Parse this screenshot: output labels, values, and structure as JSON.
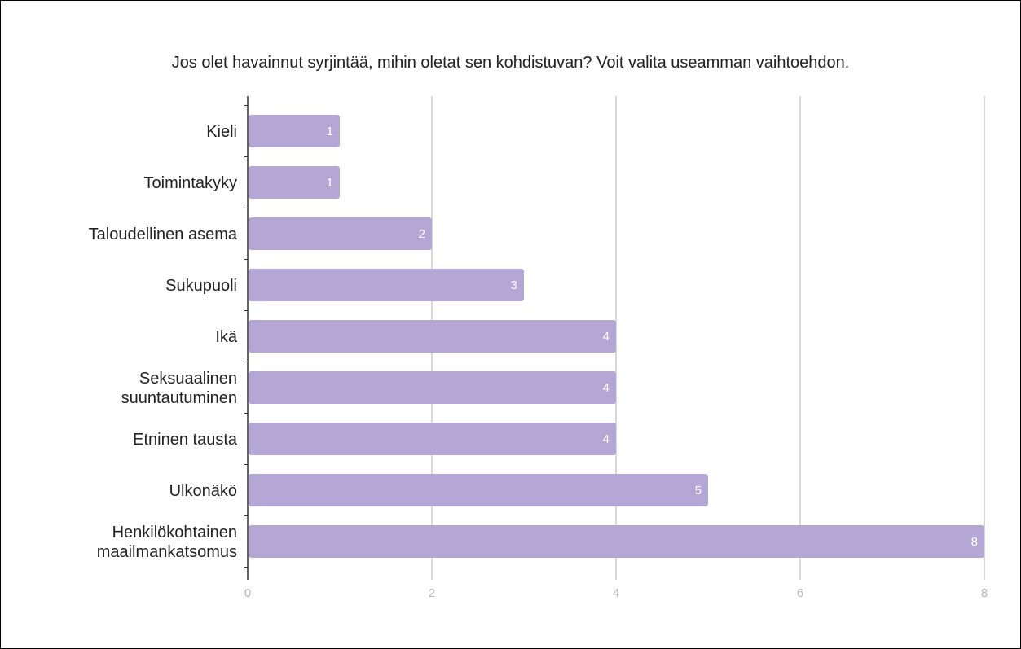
{
  "chart_data": {
    "type": "bar",
    "orientation": "horizontal",
    "title": "Jos olet havainnut syrjintää, mihin oletat sen kohdistuvan? Voit valita useamman vaihtoehdon.",
    "categories": [
      [
        "Kieli"
      ],
      [
        "Toimintakyky"
      ],
      [
        "Taloudellinen asema"
      ],
      [
        "Sukupuoli"
      ],
      [
        "Ikä"
      ],
      [
        "Seksuaalinen",
        "suuntautuminen"
      ],
      [
        "Etninen tausta"
      ],
      [
        "Ulkonäkö"
      ],
      [
        "Henkilökohtainen",
        "maailmankatsomus"
      ]
    ],
    "values": [
      1,
      1,
      2,
      3,
      4,
      4,
      4,
      5,
      8
    ],
    "xlim": [
      0,
      8
    ],
    "xticks": [
      0,
      2,
      4,
      6,
      8
    ],
    "grid": true,
    "legend": "none",
    "bar_color": "#b4a7d6",
    "grid_color": "#cccccc",
    "axis_color": "#333333"
  }
}
